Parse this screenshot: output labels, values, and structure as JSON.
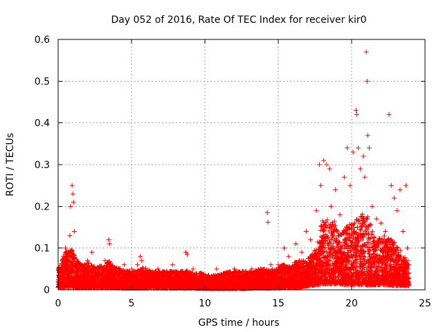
{
  "chart_data": {
    "type": "scatter",
    "title": "Day 052 of 2016, Rate Of TEC Index for receiver kir0",
    "xlabel": "GPS time / hours",
    "ylabel": "ROTI / TECUs",
    "xlim": [
      0,
      25
    ],
    "ylim": [
      0,
      0.6
    ],
    "xticks": [
      0,
      5,
      10,
      15,
      20,
      25
    ],
    "yticks": [
      0,
      0.1,
      0.2,
      0.3,
      0.4,
      0.5,
      0.6
    ],
    "xtick_labels": [
      "0",
      "5",
      "10",
      "15",
      "20",
      "25"
    ],
    "ytick_labels": [
      "0",
      "0.1",
      "0.2",
      "0.3",
      "0.4",
      "0.5",
      "0.6"
    ],
    "grid": true,
    "marker": "+",
    "color": "#ff0000",
    "series": [
      {
        "name": "kir0",
        "points": [
          [
            0.1,
            0.03
          ],
          [
            0.2,
            0.05
          ],
          [
            0.35,
            0.08
          ],
          [
            0.5,
            0.1
          ],
          [
            0.65,
            0.07
          ],
          [
            0.8,
            0.13
          ],
          [
            0.85,
            0.2
          ],
          [
            0.95,
            0.25
          ],
          [
            1.0,
            0.23
          ],
          [
            1.05,
            0.21
          ],
          [
            1.1,
            0.14
          ],
          [
            1.3,
            0.06
          ],
          [
            1.6,
            0.05
          ],
          [
            2.0,
            0.07
          ],
          [
            2.3,
            0.09
          ],
          [
            2.7,
            0.05
          ],
          [
            3.2,
            0.07
          ],
          [
            3.45,
            0.12
          ],
          [
            3.5,
            0.11
          ],
          [
            3.8,
            0.05
          ],
          [
            4.2,
            0.04
          ],
          [
            4.5,
            0.06
          ],
          [
            5.0,
            0.05
          ],
          [
            5.4,
            0.06
          ],
          [
            5.6,
            0.08
          ],
          [
            5.7,
            0.07
          ],
          [
            6.2,
            0.04
          ],
          [
            6.8,
            0.05
          ],
          [
            7.3,
            0.04
          ],
          [
            7.8,
            0.06
          ],
          [
            8.3,
            0.04
          ],
          [
            8.7,
            0.09
          ],
          [
            8.8,
            0.085
          ],
          [
            9.2,
            0.05
          ],
          [
            9.7,
            0.04
          ],
          [
            10.2,
            0.03
          ],
          [
            10.8,
            0.05
          ],
          [
            11.4,
            0.04
          ],
          [
            12.0,
            0.05
          ],
          [
            12.6,
            0.04
          ],
          [
            13.2,
            0.05
          ],
          [
            13.8,
            0.05
          ],
          [
            14.25,
            0.185
          ],
          [
            14.3,
            0.162
          ],
          [
            14.5,
            0.06
          ],
          [
            15.0,
            0.06
          ],
          [
            15.4,
            0.1
          ],
          [
            15.7,
            0.08
          ],
          [
            16.2,
            0.11
          ],
          [
            16.6,
            0.09
          ],
          [
            16.9,
            0.14
          ],
          [
            17.2,
            0.12
          ],
          [
            17.6,
            0.19
          ],
          [
            17.8,
            0.3
          ],
          [
            17.9,
            0.25
          ],
          [
            18.1,
            0.31
          ],
          [
            18.3,
            0.3
          ],
          [
            18.5,
            0.29
          ],
          [
            18.6,
            0.2
          ],
          [
            18.9,
            0.24
          ],
          [
            19.2,
            0.18
          ],
          [
            19.5,
            0.27
          ],
          [
            19.7,
            0.34
          ],
          [
            19.9,
            0.25
          ],
          [
            20.1,
            0.33
          ],
          [
            20.3,
            0.43
          ],
          [
            20.35,
            0.42
          ],
          [
            20.45,
            0.34
          ],
          [
            20.6,
            0.29
          ],
          [
            20.8,
            0.32
          ],
          [
            20.9,
            0.27
          ],
          [
            21.0,
            0.57
          ],
          [
            21.05,
            0.5
          ],
          [
            21.1,
            0.37
          ],
          [
            21.2,
            0.34
          ],
          [
            21.4,
            0.2
          ],
          [
            21.7,
            0.17
          ],
          [
            22.0,
            0.16
          ],
          [
            22.3,
            0.14
          ],
          [
            22.55,
            0.42
          ],
          [
            22.7,
            0.25
          ],
          [
            22.9,
            0.22
          ],
          [
            23.1,
            0.19
          ],
          [
            23.3,
            0.24
          ],
          [
            23.5,
            0.14
          ],
          [
            23.7,
            0.25
          ],
          [
            23.8,
            0.1
          ]
        ]
      }
    ],
    "envelope": {
      "x": [
        0,
        0.5,
        0.9,
        1.2,
        1.6,
        2.1,
        2.6,
        3.2,
        3.5,
        3.8,
        4.3,
        4.8,
        5.3,
        5.8,
        6.3,
        6.8,
        7.3,
        7.8,
        8.3,
        8.8,
        9.3,
        9.8,
        10.3,
        10.8,
        11.3,
        11.8,
        12.3,
        12.8,
        13.3,
        13.8,
        14.3,
        14.8,
        15.3,
        15.8,
        16.3,
        16.8,
        17.2,
        17.6,
        18.0,
        18.4,
        18.8,
        19.2,
        19.6,
        20.0,
        20.4,
        20.8,
        21.2,
        21.6,
        22.0,
        22.4,
        22.8,
        23.2,
        23.6,
        23.9
      ],
      "low": [
        0.005,
        0.006,
        0.006,
        0.006,
        0.005,
        0.005,
        0.005,
        0.005,
        0.005,
        0.005,
        0.004,
        0.004,
        0.004,
        0.004,
        0.004,
        0.004,
        0.004,
        0.004,
        0.004,
        0.004,
        0.004,
        0.003,
        0.003,
        0.003,
        0.003,
        0.003,
        0.003,
        0.003,
        0.004,
        0.004,
        0.004,
        0.004,
        0.005,
        0.005,
        0.006,
        0.008,
        0.01,
        0.012,
        0.014,
        0.014,
        0.014,
        0.014,
        0.012,
        0.012,
        0.012,
        0.012,
        0.012,
        0.012,
        0.012,
        0.012,
        0.01,
        0.01,
        0.01,
        0.01
      ],
      "high": [
        0.05,
        0.09,
        0.1,
        0.075,
        0.06,
        0.065,
        0.055,
        0.06,
        0.07,
        0.055,
        0.05,
        0.045,
        0.045,
        0.055,
        0.045,
        0.045,
        0.045,
        0.045,
        0.045,
        0.045,
        0.04,
        0.04,
        0.035,
        0.035,
        0.04,
        0.045,
        0.045,
        0.045,
        0.045,
        0.05,
        0.05,
        0.05,
        0.06,
        0.06,
        0.07,
        0.07,
        0.08,
        0.1,
        0.17,
        0.17,
        0.17,
        0.13,
        0.15,
        0.16,
        0.17,
        0.19,
        0.17,
        0.12,
        0.13,
        0.13,
        0.12,
        0.1,
        0.08,
        0.07
      ]
    }
  }
}
